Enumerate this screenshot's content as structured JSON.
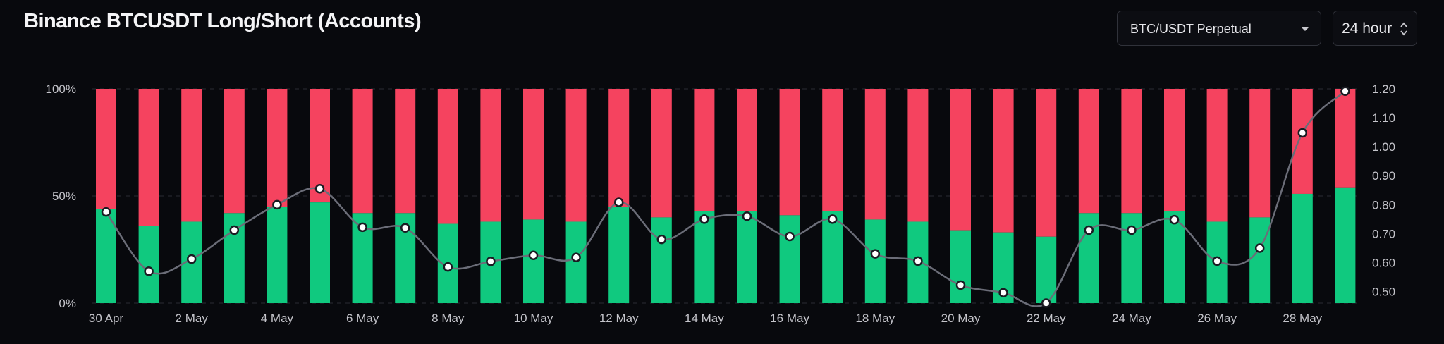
{
  "header": {
    "title": "Binance BTCUSDT Long/Short (Accounts)",
    "symbol_select": "BTC/USDT Perpetual",
    "period_select": "24 hour"
  },
  "colors": {
    "long": "#10c97f",
    "short": "#f5435f",
    "ratio_line": "#6b6d78",
    "background": "#08090d"
  },
  "chart_data": {
    "type": "bar",
    "stacked": true,
    "x": [
      "30 Apr",
      "1 May",
      "2 May",
      "3 May",
      "4 May",
      "5 May",
      "6 May",
      "7 May",
      "8 May",
      "9 May",
      "10 May",
      "11 May",
      "12 May",
      "13 May",
      "14 May",
      "15 May",
      "16 May",
      "17 May",
      "18 May",
      "19 May",
      "20 May",
      "21 May",
      "22 May",
      "23 May",
      "24 May",
      "25 May",
      "26 May",
      "27 May",
      "28 May",
      "29 May"
    ],
    "x_tick_labels": [
      "30 Apr",
      "2 May",
      "4 May",
      "6 May",
      "8 May",
      "10 May",
      "12 May",
      "14 May",
      "16 May",
      "18 May",
      "20 May",
      "22 May",
      "24 May",
      "26 May",
      "28 May"
    ],
    "series": [
      {
        "values": [
          44,
          36,
          38,
          42,
          45,
          47,
          42,
          42,
          37,
          38,
          39,
          38,
          45,
          40,
          43,
          43,
          41,
          43,
          39,
          38,
          34,
          33,
          31,
          42,
          42,
          43,
          38,
          40,
          51,
          54
        ]
      },
      {
        "values": [
          56,
          64,
          62,
          58,
          55,
          53,
          58,
          58,
          63,
          62,
          61,
          62,
          55,
          60,
          57,
          57,
          59,
          57,
          61,
          62,
          66,
          67,
          69,
          58,
          58,
          57,
          62,
          60,
          49,
          46
        ]
      },
      {
        "type": "line",
        "axis": "right",
        "values": [
          0.775,
          0.57,
          0.612,
          0.712,
          0.8,
          0.855,
          0.722,
          0.72,
          0.585,
          0.604,
          0.625,
          0.618,
          0.808,
          0.68,
          0.75,
          0.76,
          0.69,
          0.75,
          0.63,
          0.605,
          0.522,
          0.496,
          0.46,
          0.712,
          0.712,
          0.748,
          0.605,
          0.65,
          1.048,
          1.192
        ]
      }
    ],
    "y_left": {
      "ticks": [
        "0%",
        "50%",
        "100%"
      ],
      "range": [
        0,
        100
      ]
    },
    "y_right": {
      "ticks": [
        "0.50",
        "0.60",
        "0.70",
        "0.80",
        "0.90",
        "1.00",
        "1.10",
        "1.20"
      ],
      "range": [
        0.46,
        1.2
      ]
    },
    "grid": true
  }
}
